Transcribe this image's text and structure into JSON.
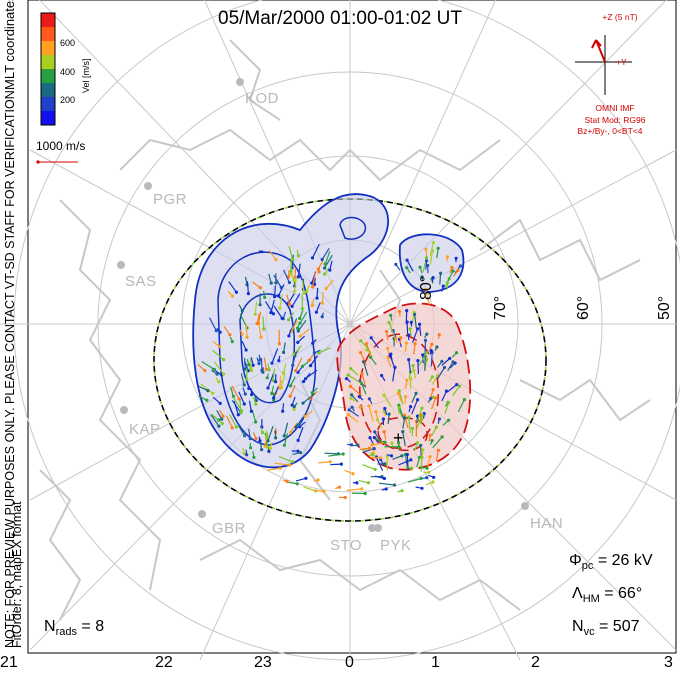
{
  "title": "05/Mar/2000 01:00-01:02 UT",
  "colorbar": {
    "ticks": [
      "600",
      "400",
      "200"
    ],
    "unit_label": "Vel [m/s]",
    "colors": [
      "#ee1a1a",
      "#ff5a1a",
      "#ffa020",
      "#a8d020",
      "#28a040",
      "#1a6a80",
      "#2040c8",
      "#1010f0"
    ]
  },
  "coordinate_system": "MLT coordinates",
  "side_note": "NOTE: FOR PREVIEW PURPOSES ONLY. PLEASE CONTACT VT-SD STAFF FOR VERIFICATION.",
  "fit_info": "FitOrder: 8, mapEX format",
  "scale_vector": "1000 m/s",
  "imf": {
    "z_label": "+Z (5 nT)",
    "y_label": "+Y",
    "source": "OMNI IMF",
    "model": "Stat Mod: RG96",
    "condition": "Bz+/By-, 0<BT<4"
  },
  "stations": [
    "KOD",
    "PGR",
    "SAS",
    "KAP",
    "GBR",
    "STO",
    "PYK",
    "HAN"
  ],
  "latitude_labels": [
    "80°",
    "70°",
    "60°",
    "50°"
  ],
  "mlt_labels": [
    "21",
    "22",
    "23",
    "0",
    "1",
    "2",
    "3"
  ],
  "stats": {
    "phi_symbol": "Φ",
    "phi_sub": "pc",
    "phi_value": " = 26 kV",
    "lambda_symbol": "Λ",
    "lambda_sub": "HM",
    "lambda_value": " = 66°",
    "nvc_symbol": "N",
    "nvc_sub": "vc",
    "nvc_value": " = 507",
    "nrads_symbol": "N",
    "nrads_sub": "rads",
    "nrads_value": " = 8"
  },
  "potential_contours": {
    "dusk_cell": "negative (blue, solid)",
    "dawn_cell": "positive (red, dashed)",
    "min_marker": "-",
    "max_marker": "+"
  }
}
